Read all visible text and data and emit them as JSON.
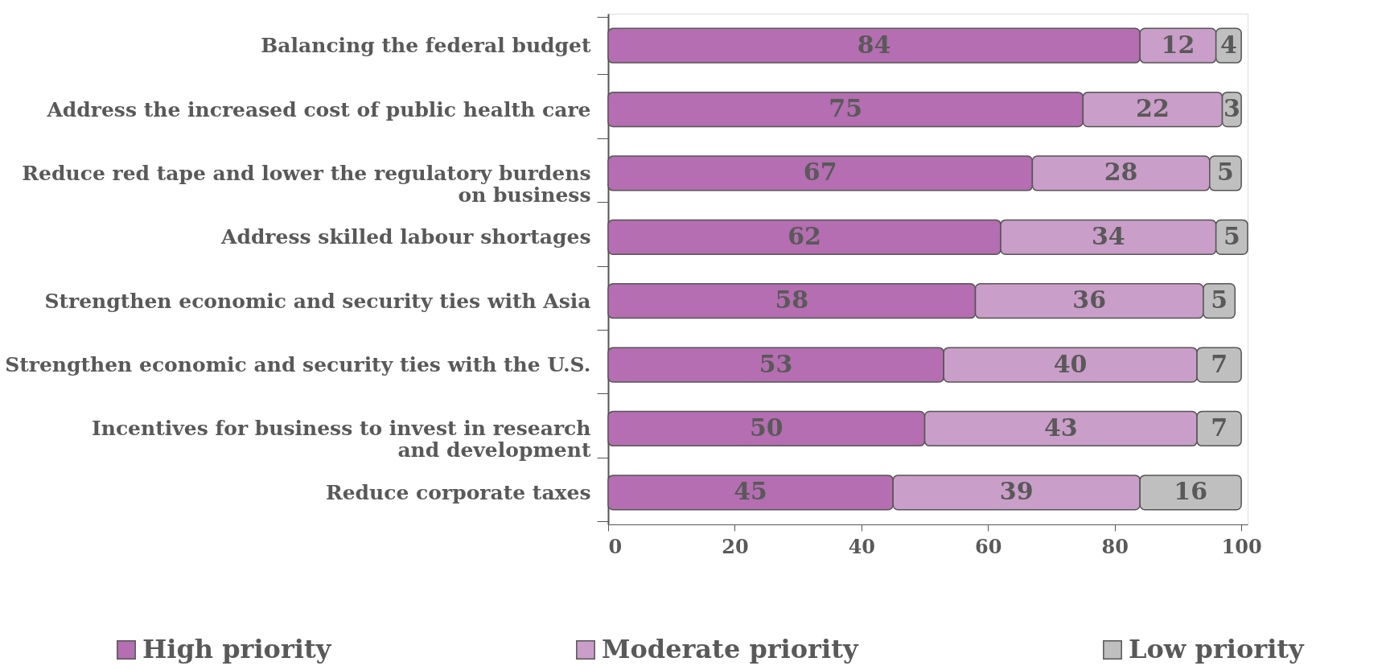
{
  "chart_data": {
    "type": "bar",
    "orientation": "horizontal",
    "stacked": true,
    "data_labels": true,
    "categories": [
      "Balancing the federal budget",
      "Address the increased cost of public health care",
      "Reduce red tape and lower the regulatory burdens on business",
      "Address skilled labour shortages",
      "Strengthen economic and security ties with Asia",
      "Strengthen economic and security ties with the U.S.",
      "Incentives for business to invest in research and development",
      "Reduce corporate taxes"
    ],
    "series": [
      {
        "name": "High priority",
        "color": "#b46eb1",
        "values": [
          84,
          75,
          67,
          62,
          58,
          53,
          50,
          45
        ]
      },
      {
        "name": "Moderate priority",
        "color": "#c99ec8",
        "values": [
          12,
          22,
          28,
          34,
          36,
          40,
          43,
          39
        ]
      },
      {
        "name": "Low priority",
        "color": "#bfbfbf",
        "values": [
          4,
          3,
          5,
          5,
          5,
          7,
          7,
          16
        ]
      }
    ],
    "xlim": [
      0,
      101
    ],
    "xticks": [
      0,
      20,
      40,
      60,
      80,
      100
    ],
    "grid": false,
    "legend": "bottom"
  }
}
